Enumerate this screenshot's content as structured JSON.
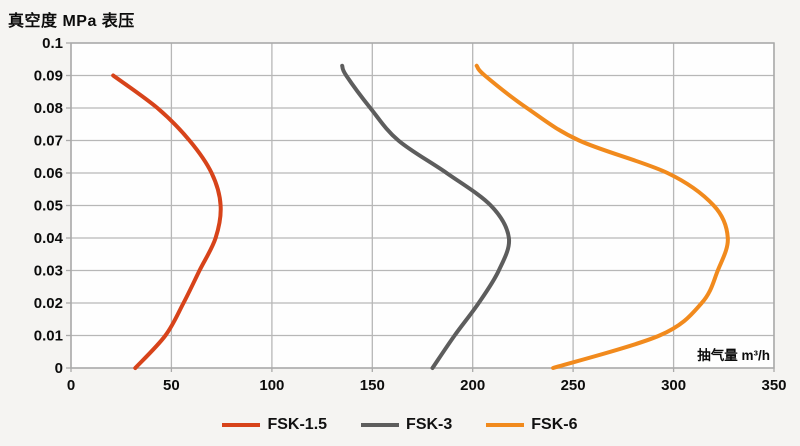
{
  "title": "真空度 MPa 表压",
  "axes": {
    "x": {
      "label": "抽气量 m³/h",
      "min": 0,
      "max": 350,
      "tick_values": [
        0,
        50,
        100,
        150,
        200,
        250,
        300,
        350
      ],
      "tick_labels": [
        "0",
        "50",
        "100",
        "150",
        "200",
        "250",
        "300",
        "350"
      ]
    },
    "y": {
      "label": "真空度 MPa 表压",
      "min": 0,
      "max": 0.1,
      "tick_values": [
        0,
        0.01,
        0.02,
        0.03,
        0.04,
        0.05,
        0.06,
        0.07,
        0.08,
        0.09,
        0.1
      ],
      "tick_labels": [
        "0",
        "0.01",
        "0.02",
        "0.03",
        "0.04",
        "0.05",
        "0.06",
        "0.07",
        "0.08",
        "0.09",
        "0.1"
      ]
    }
  },
  "legend": {
    "items": [
      {
        "label": "FSK-1.5",
        "color": "#d7431a"
      },
      {
        "label": "FSK-3",
        "color": "#5d5d5d"
      },
      {
        "label": "FSK-6",
        "color": "#f18a1d"
      }
    ]
  },
  "colors": {
    "page_background": "#f5f4f2",
    "plot_background": "#fefefe",
    "gridline": "#b7b7b7",
    "plot_border": "#a9a9a9",
    "text": "#0c0c0c"
  },
  "chart_data": {
    "type": "line",
    "title": "真空度 MPa 表压",
    "xlabel": "抽气量 m³/h",
    "ylabel": "真空度 MPa 表压",
    "xlim": [
      0,
      350
    ],
    "ylim": [
      0,
      0.1
    ],
    "grid": true,
    "legend_position": "bottom",
    "series": [
      {
        "name": "FSK-1.5",
        "color": "#d7431a",
        "points": [
          [
            32,
            0
          ],
          [
            47,
            0.01
          ],
          [
            56,
            0.02
          ],
          [
            64,
            0.03
          ],
          [
            72,
            0.04
          ],
          [
            74.5,
            0.05
          ],
          [
            70,
            0.06
          ],
          [
            59,
            0.07
          ],
          [
            43,
            0.08
          ],
          [
            21,
            0.09
          ]
        ]
      },
      {
        "name": "FSK-3",
        "color": "#5d5d5d",
        "points": [
          [
            180,
            0
          ],
          [
            191,
            0.01
          ],
          [
            203,
            0.02
          ],
          [
            213,
            0.03
          ],
          [
            218,
            0.04
          ],
          [
            209,
            0.05
          ],
          [
            187,
            0.06
          ],
          [
            163,
            0.07
          ],
          [
            149,
            0.08
          ],
          [
            137,
            0.09
          ],
          [
            135,
            0.093
          ]
        ]
      },
      {
        "name": "FSK-6",
        "color": "#f18a1d",
        "points": [
          [
            240,
            0
          ],
          [
            293,
            0.01
          ],
          [
            314,
            0.02
          ],
          [
            322,
            0.03
          ],
          [
            327,
            0.04
          ],
          [
            320,
            0.05
          ],
          [
            297,
            0.06
          ],
          [
            253,
            0.07
          ],
          [
            227,
            0.08
          ],
          [
            206,
            0.09
          ],
          [
            202,
            0.093
          ]
        ]
      }
    ]
  }
}
